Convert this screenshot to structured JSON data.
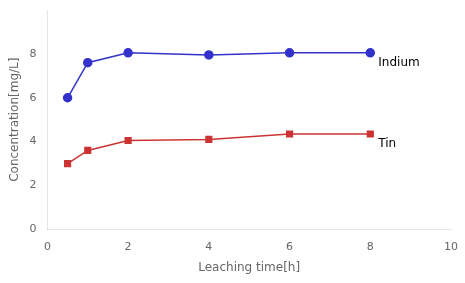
{
  "chart_data": {
    "type": "line",
    "xlabel": "Leaching time[h]",
    "ylabel": "Concentration[mg/L]",
    "x": [
      0.5,
      1,
      2,
      4,
      6,
      8
    ],
    "series": [
      {
        "name": "Indium",
        "color": "#3333cc",
        "marker": "circle",
        "line_style": "solid",
        "values": [
          6.0,
          7.6,
          8.05,
          7.95,
          8.05,
          8.05
        ]
      },
      {
        "name": "Tin",
        "color": "#cc3333",
        "marker": "square",
        "line_style": "solid",
        "values": [
          3.0,
          3.6,
          4.05,
          4.1,
          4.35,
          4.35
        ]
      }
    ],
    "xlim": [
      0,
      10
    ],
    "xticks": [
      0,
      2,
      4,
      6,
      8,
      10
    ],
    "ylim": [
      0,
      10
    ],
    "yticks": [
      0,
      2,
      4,
      6,
      8
    ],
    "grid": false
  }
}
